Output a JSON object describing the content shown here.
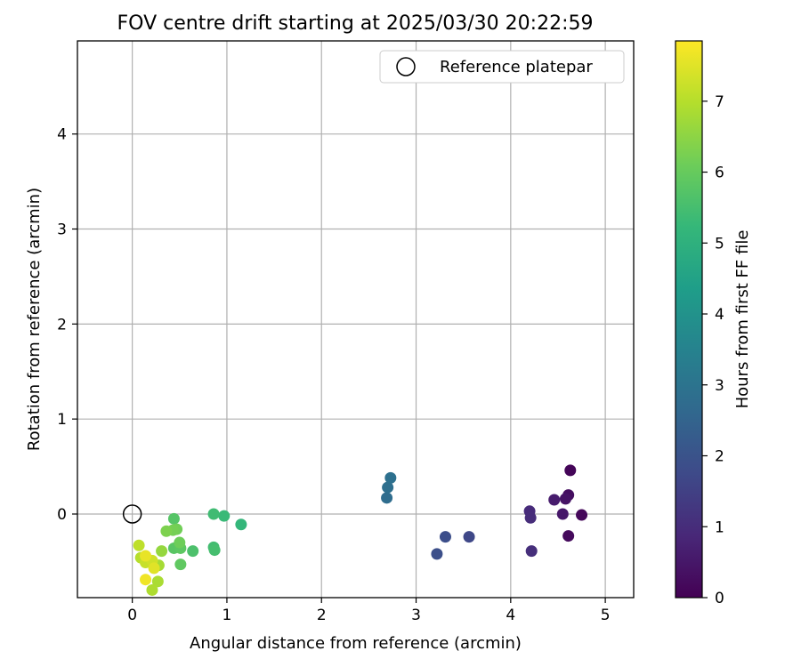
{
  "chart_data": {
    "type": "scatter",
    "title": "FOV centre drift starting at 2025/03/30 20:22:59",
    "xlabel": "Angular distance from reference (arcmin)",
    "ylabel": "Rotation from reference (arcmin)",
    "xlim": [
      -0.58,
      5.3
    ],
    "ylim": [
      -0.88,
      4.98
    ],
    "xticks": [
      0,
      1,
      2,
      3,
      4,
      5
    ],
    "yticks": [
      0,
      1,
      2,
      3,
      4
    ],
    "grid": true,
    "legend": {
      "placement": "top-right",
      "entries": [
        "Reference platepar"
      ]
    },
    "reference_point": {
      "label": "Reference platepar",
      "x": 0,
      "y": 0
    },
    "colorbar": {
      "label": "Hours from first FF file",
      "colormap": "viridis",
      "range": [
        0,
        7.85
      ],
      "ticks": [
        0,
        1,
        2,
        3,
        4,
        5,
        6,
        7
      ]
    },
    "series": [
      {
        "points": [
          {
            "x": 4.63,
            "y": 0.46,
            "hours": 0.1
          },
          {
            "x": 4.75,
            "y": -0.01,
            "hours": 0.15
          },
          {
            "x": 4.61,
            "y": -0.23,
            "hours": 0.2
          },
          {
            "x": 4.61,
            "y": 0.2,
            "hours": 0.3
          },
          {
            "x": 4.58,
            "y": 0.16,
            "hours": 0.4
          },
          {
            "x": 4.55,
            "y": 0.0,
            "hours": 0.5
          },
          {
            "x": 4.46,
            "y": 0.15,
            "hours": 0.6
          },
          {
            "x": 4.2,
            "y": 0.03,
            "hours": 0.95
          },
          {
            "x": 4.21,
            "y": -0.04,
            "hours": 1.0
          },
          {
            "x": 4.22,
            "y": -0.39,
            "hours": 1.05
          },
          {
            "x": 3.56,
            "y": -0.24,
            "hours": 1.7
          },
          {
            "x": 3.31,
            "y": -0.24,
            "hours": 1.85
          },
          {
            "x": 3.22,
            "y": -0.42,
            "hours": 1.9
          },
          {
            "x": 2.69,
            "y": 0.17,
            "hours": 2.8
          },
          {
            "x": 2.7,
            "y": 0.28,
            "hours": 2.85
          },
          {
            "x": 2.73,
            "y": 0.38,
            "hours": 2.9
          },
          {
            "x": 1.15,
            "y": -0.11,
            "hours": 5.2
          },
          {
            "x": 0.97,
            "y": -0.02,
            "hours": 5.3
          },
          {
            "x": 0.86,
            "y": 0.0,
            "hours": 5.4
          },
          {
            "x": 0.86,
            "y": -0.35,
            "hours": 5.45
          },
          {
            "x": 0.87,
            "y": -0.38,
            "hours": 5.5
          },
          {
            "x": 0.64,
            "y": -0.39,
            "hours": 5.6
          },
          {
            "x": 0.44,
            "y": -0.05,
            "hours": 5.75
          },
          {
            "x": 0.44,
            "y": -0.36,
            "hours": 5.8
          },
          {
            "x": 0.51,
            "y": -0.36,
            "hours": 5.85
          },
          {
            "x": 0.51,
            "y": -0.53,
            "hours": 5.9
          },
          {
            "x": 0.5,
            "y": -0.3,
            "hours": 6.1
          },
          {
            "x": 0.47,
            "y": -0.16,
            "hours": 6.15
          },
          {
            "x": 0.43,
            "y": -0.17,
            "hours": 6.2
          },
          {
            "x": 0.36,
            "y": -0.18,
            "hours": 6.3
          },
          {
            "x": 0.31,
            "y": -0.39,
            "hours": 6.6
          },
          {
            "x": 0.28,
            "y": -0.54,
            "hours": 6.8
          },
          {
            "x": 0.27,
            "y": -0.71,
            "hours": 6.85
          },
          {
            "x": 0.21,
            "y": -0.8,
            "hours": 6.9
          },
          {
            "x": 0.09,
            "y": -0.46,
            "hours": 7.0
          },
          {
            "x": 0.07,
            "y": -0.33,
            "hours": 7.1
          },
          {
            "x": 0.14,
            "y": -0.51,
            "hours": 7.2
          },
          {
            "x": 0.21,
            "y": -0.49,
            "hours": 7.3
          },
          {
            "x": 0.23,
            "y": -0.57,
            "hours": 7.5
          },
          {
            "x": 0.14,
            "y": -0.44,
            "hours": 7.6
          },
          {
            "x": 0.14,
            "y": -0.69,
            "hours": 7.7
          }
        ]
      }
    ]
  }
}
